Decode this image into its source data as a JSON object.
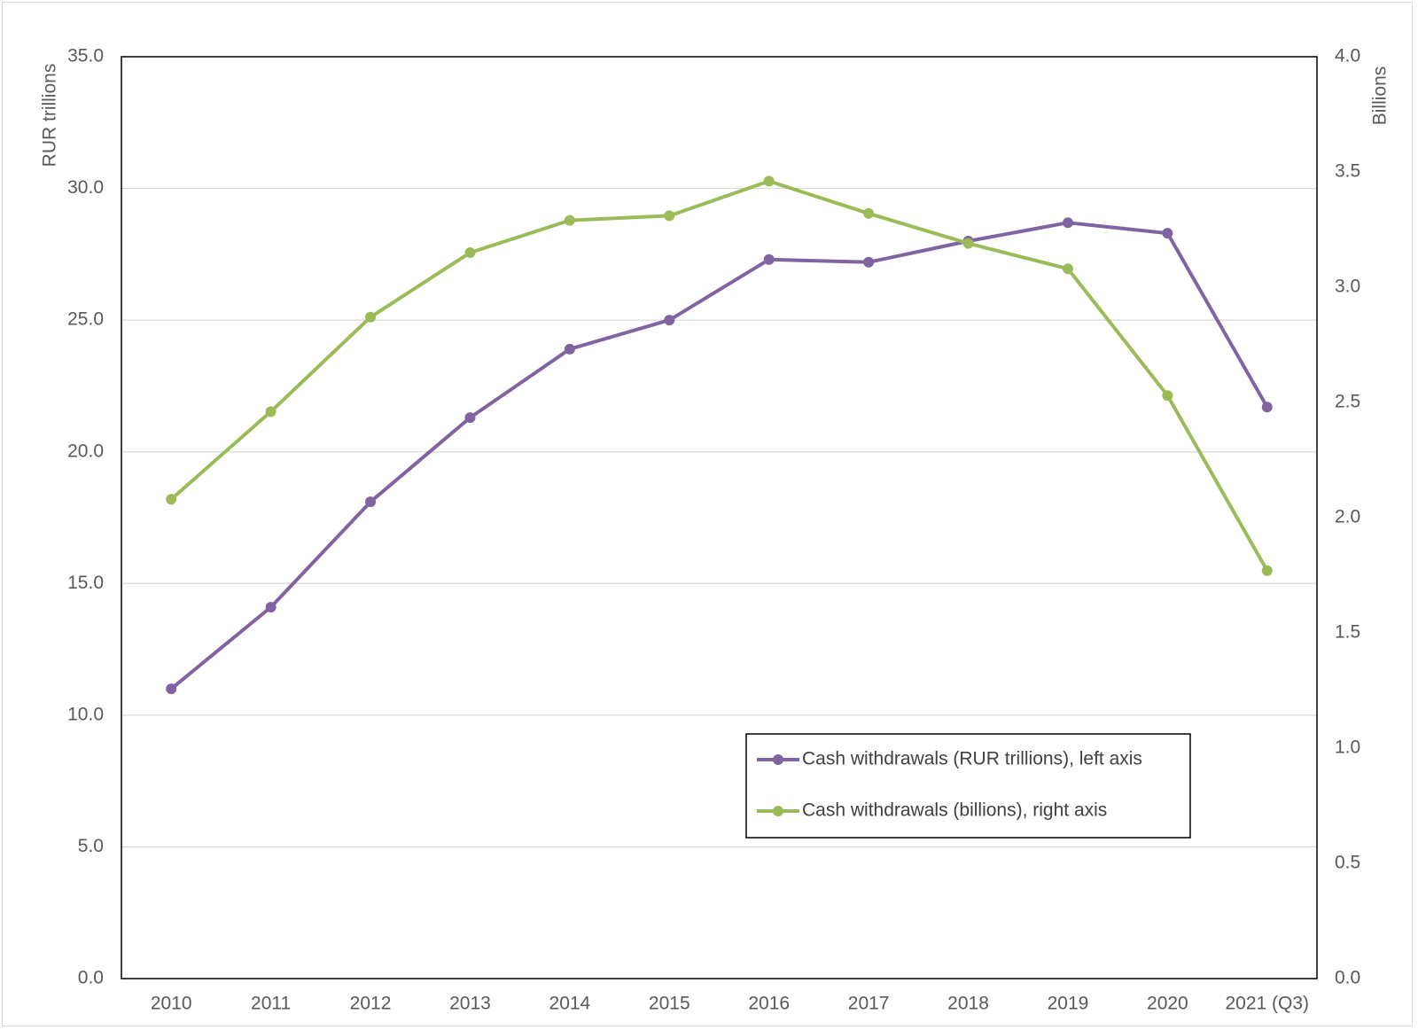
{
  "chart_data": {
    "type": "line",
    "title": "",
    "categories": [
      "2010",
      "2011",
      "2012",
      "2013",
      "2014",
      "2015",
      "2016",
      "2017",
      "2018",
      "2019",
      "2020",
      "2021 (Q3)"
    ],
    "left_axis": {
      "label": "RUR trillions",
      "ylim": [
        0,
        35
      ],
      "ticks": [
        "0.0",
        "5.0",
        "10.0",
        "15.0",
        "20.0",
        "25.0",
        "30.0",
        "35.0"
      ]
    },
    "right_axis": {
      "label": "Billions",
      "ylim": [
        0,
        4
      ],
      "ticks": [
        "0.0",
        "0.5",
        "1.0",
        "1.5",
        "2.0",
        "2.5",
        "3.0",
        "3.5",
        "4.0"
      ]
    },
    "grid": true,
    "legend_position": "bottom-right",
    "series": [
      {
        "name": "Cash withdrawals (RUR trillions), left axis",
        "axis": "left",
        "color": "#8064a2",
        "values": [
          11.0,
          14.1,
          18.1,
          21.3,
          23.9,
          25.0,
          27.3,
          27.2,
          28.0,
          28.7,
          28.3,
          21.7
        ]
      },
      {
        "name": "Cash withdrawals (billions), right axis",
        "axis": "right",
        "color": "#9bbb59",
        "values": [
          2.08,
          2.46,
          2.87,
          3.15,
          3.29,
          3.31,
          3.46,
          3.32,
          3.19,
          3.08,
          2.53,
          1.77
        ]
      }
    ]
  }
}
